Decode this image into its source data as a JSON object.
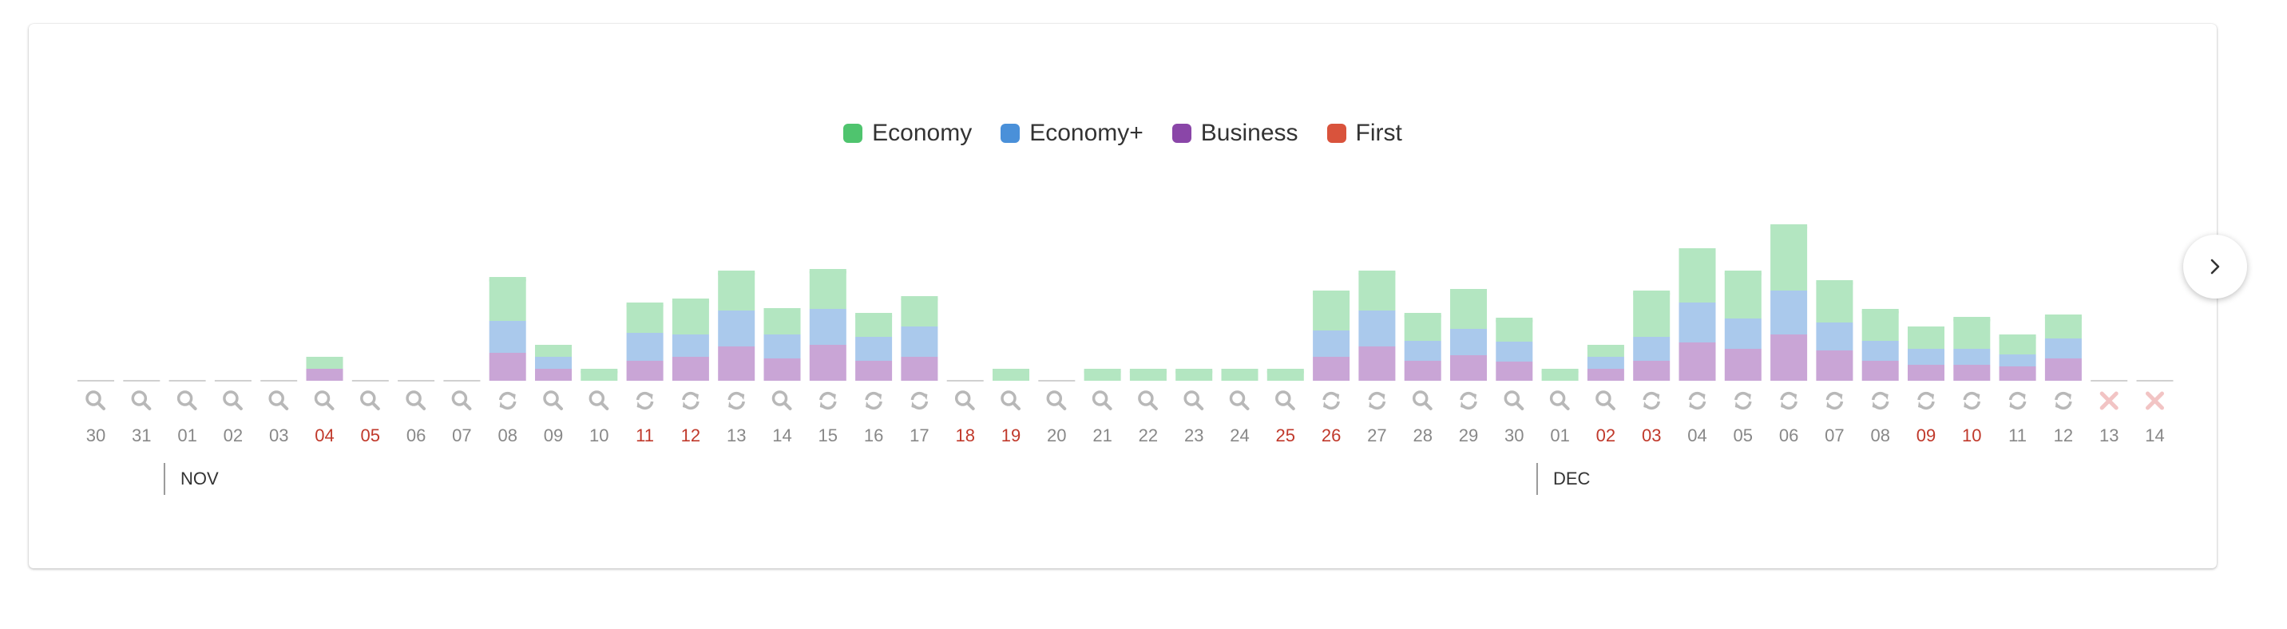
{
  "legend": [
    {
      "label": "Economy",
      "color": "#4fc46e"
    },
    {
      "label": "Economy+",
      "color": "#4a90d9"
    },
    {
      "label": "Business",
      "color": "#8a46a8"
    },
    {
      "label": "First",
      "color": "#d9533c"
    }
  ],
  "colors": {
    "economy_fill": "#b3e6c1",
    "economy_plus_fill": "#aac9ec",
    "business_fill": "#c9a5d6",
    "day_label": "#888888",
    "weekend_label": "#c0392b",
    "icon": "#b8b8b8",
    "unavailable_icon": "#f2c4c4"
  },
  "months": [
    {
      "label": "NOV",
      "starts_at_index": 2
    },
    {
      "label": "DEC",
      "starts_at_index": 32
    }
  ],
  "next_icon": "chevron-right-icon",
  "chart_data": {
    "type": "bar",
    "stacked": true,
    "categories": [
      "30",
      "31",
      "01",
      "02",
      "03",
      "04",
      "05",
      "06",
      "07",
      "08",
      "09",
      "10",
      "11",
      "12",
      "13",
      "14",
      "15",
      "16",
      "17",
      "18",
      "19",
      "20",
      "21",
      "22",
      "23",
      "24",
      "25",
      "26",
      "27",
      "28",
      "29",
      "30",
      "01",
      "02",
      "03",
      "04",
      "05",
      "06",
      "07",
      "08",
      "09",
      "10",
      "11",
      "12",
      "13",
      "14"
    ],
    "weekend_days": [
      false,
      false,
      false,
      false,
      false,
      true,
      true,
      false,
      false,
      false,
      false,
      false,
      true,
      true,
      false,
      false,
      false,
      false,
      false,
      true,
      true,
      false,
      false,
      false,
      false,
      false,
      true,
      true,
      false,
      false,
      false,
      false,
      false,
      true,
      true,
      false,
      false,
      false,
      false,
      false,
      true,
      true,
      false,
      false,
      false,
      false
    ],
    "status_icons": [
      "search",
      "search",
      "search",
      "search",
      "search",
      "search",
      "search",
      "search",
      "search",
      "refresh",
      "search",
      "search",
      "refresh",
      "refresh",
      "refresh",
      "search",
      "refresh",
      "refresh",
      "refresh",
      "search",
      "search",
      "search",
      "search",
      "search",
      "search",
      "search",
      "search",
      "refresh",
      "refresh",
      "search",
      "refresh",
      "search",
      "search",
      "search",
      "refresh",
      "refresh",
      "refresh",
      "refresh",
      "refresh",
      "refresh",
      "refresh",
      "refresh",
      "refresh",
      "refresh",
      "unavailable",
      "unavailable"
    ],
    "series": [
      {
        "name": "Business",
        "values": [
          0,
          0,
          0,
          0,
          0,
          15,
          0,
          0,
          0,
          35,
          15,
          0,
          25,
          30,
          43,
          28,
          45,
          25,
          30,
          0,
          0,
          0,
          0,
          0,
          0,
          0,
          0,
          30,
          43,
          25,
          32,
          24,
          0,
          15,
          25,
          48,
          40,
          58,
          38,
          25,
          20,
          20,
          18,
          28,
          0,
          0
        ]
      },
      {
        "name": "Economy+",
        "values": [
          0,
          0,
          0,
          0,
          0,
          0,
          0,
          0,
          0,
          40,
          15,
          0,
          35,
          28,
          45,
          30,
          45,
          30,
          38,
          0,
          0,
          0,
          0,
          0,
          0,
          0,
          0,
          33,
          45,
          25,
          33,
          25,
          0,
          15,
          30,
          50,
          38,
          55,
          35,
          25,
          20,
          20,
          15,
          25,
          0,
          0
        ]
      },
      {
        "name": "Economy",
        "values": [
          0,
          0,
          0,
          0,
          0,
          15,
          0,
          0,
          0,
          55,
          15,
          15,
          38,
          45,
          50,
          33,
          50,
          30,
          38,
          0,
          15,
          0,
          15,
          15,
          15,
          15,
          15,
          50,
          50,
          35,
          50,
          30,
          15,
          15,
          58,
          68,
          60,
          83,
          53,
          40,
          28,
          40,
          25,
          30,
          0,
          0
        ]
      }
    ],
    "ylim": [
      0,
      200
    ],
    "grid": false,
    "legend_position": "top-center"
  }
}
